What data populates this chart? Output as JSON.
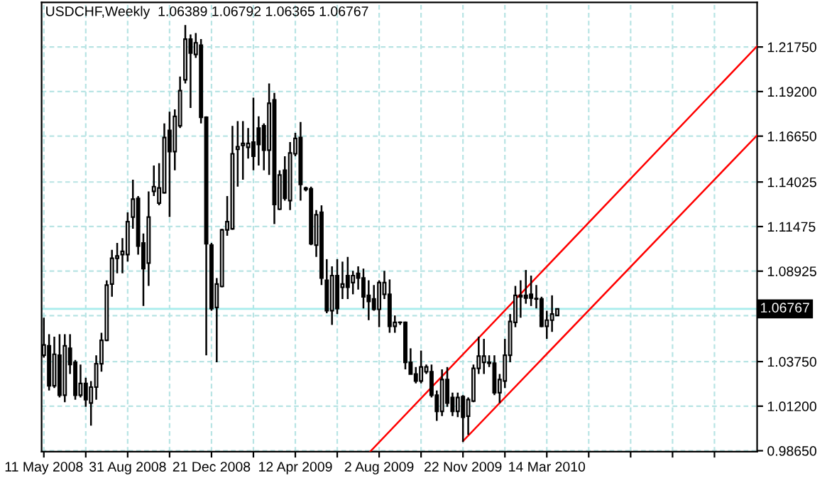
{
  "chart_data": {
    "type": "candlestick",
    "title": "USDCHF,Weekly  1.06389 1.06792 1.06365 1.06767",
    "color": "#000000",
    "x": [
      "2008-05-11",
      "2008-05-18",
      "2008-05-25",
      "2008-06-01",
      "2008-06-08",
      "2008-06-15",
      "2008-06-22",
      "2008-06-29",
      "2008-07-06",
      "2008-07-13",
      "2008-07-20",
      "2008-07-27",
      "2008-08-03",
      "2008-08-10",
      "2008-08-17",
      "2008-08-24",
      "2008-08-31",
      "2008-09-07",
      "2008-09-14",
      "2008-09-21",
      "2008-09-28",
      "2008-10-05",
      "2008-10-12",
      "2008-10-19",
      "2008-10-26",
      "2008-11-02",
      "2008-11-09",
      "2008-11-16",
      "2008-11-23",
      "2008-11-30",
      "2008-12-07",
      "2008-12-14",
      "2008-12-21",
      "2008-12-28",
      "2009-01-04",
      "2009-01-11",
      "2009-01-18",
      "2009-01-25",
      "2009-02-01",
      "2009-02-08",
      "2009-02-15",
      "2009-02-22",
      "2009-03-01",
      "2009-03-08",
      "2009-03-15",
      "2009-03-22",
      "2009-03-29",
      "2009-04-05",
      "2009-04-12",
      "2009-04-19",
      "2009-04-26",
      "2009-05-03",
      "2009-05-10",
      "2009-05-17",
      "2009-05-24",
      "2009-05-31",
      "2009-06-07",
      "2009-06-14",
      "2009-06-21",
      "2009-06-28",
      "2009-07-05",
      "2009-07-12",
      "2009-07-19",
      "2009-07-26",
      "2009-08-02",
      "2009-08-09",
      "2009-08-16",
      "2009-08-23",
      "2009-08-30",
      "2009-09-06",
      "2009-09-13",
      "2009-09-20",
      "2009-09-27",
      "2009-10-04",
      "2009-10-11",
      "2009-10-18",
      "2009-10-25",
      "2009-11-01",
      "2009-11-08",
      "2009-11-15",
      "2009-11-22",
      "2009-11-29",
      "2009-12-06",
      "2009-12-13",
      "2009-12-20",
      "2009-12-27",
      "2010-01-03",
      "2010-01-10",
      "2010-01-17",
      "2010-01-24",
      "2010-01-31",
      "2010-02-07",
      "2010-02-14",
      "2010-02-21",
      "2010-02-28",
      "2010-03-07",
      "2010-03-14",
      "2010-03-21",
      "2010-03-28"
    ],
    "ohlc": [
      [
        1.0411,
        1.0626,
        1.0398,
        1.047
      ],
      [
        1.0465,
        1.0532,
        1.021,
        1.0237
      ],
      [
        1.0237,
        1.0518,
        1.0224,
        1.0417
      ],
      [
        1.0411,
        1.0532,
        1.017,
        1.0183
      ],
      [
        1.0183,
        1.0532,
        1.0143,
        1.0465
      ],
      [
        1.0451,
        1.0532,
        1.0304,
        1.0358
      ],
      [
        1.0371,
        1.0384,
        1.0157,
        1.0183
      ],
      [
        1.0183,
        1.0358,
        1.017,
        1.025
      ],
      [
        1.025,
        1.0283,
        1.0116,
        1.0157
      ],
      [
        1.0138,
        1.0264,
        1.0009,
        1.0229
      ],
      [
        1.0229,
        1.0411,
        1.0157,
        1.0363
      ],
      [
        1.0363,
        1.054,
        1.0317,
        1.0497
      ],
      [
        1.0497,
        1.084,
        1.0492,
        1.0813
      ],
      [
        1.0819,
        1.1014,
        1.0746,
        1.0966
      ],
      [
        1.0966,
        1.1054,
        1.088,
        1.0979
      ],
      [
        1.0987,
        1.1081,
        1.088,
        1.1006
      ],
      [
        1.0987,
        1.1229,
        1.0947,
        1.1175
      ],
      [
        1.1202,
        1.1416,
        1.1135,
        1.1304
      ],
      [
        1.1309,
        1.1322,
        1.0987,
        1.1036
      ],
      [
        1.1054,
        1.1108,
        1.0693,
        1.0907
      ],
      [
        1.0939,
        1.1349,
        1.0808,
        1.1202
      ],
      [
        1.1349,
        1.1497,
        1.1322,
        1.1376
      ],
      [
        1.1282,
        1.151,
        1.1269,
        1.1368
      ],
      [
        1.1341,
        1.1738,
        1.1336,
        1.1657
      ],
      [
        1.1698,
        1.1805,
        1.1202,
        1.1577
      ],
      [
        1.1577,
        1.1818,
        1.147,
        1.1778
      ],
      [
        1.1724,
        1.2006,
        1.1711,
        1.1925
      ],
      [
        1.1987,
        1.2301,
        1.1966,
        1.222
      ],
      [
        1.222,
        1.2247,
        1.1826,
        1.214
      ],
      [
        1.2132,
        1.2255,
        1.2113,
        1.2199
      ],
      [
        1.2185,
        1.222,
        1.1738,
        1.1773
      ],
      [
        1.1773,
        1.1778,
        1.0411,
        1.1049
      ],
      [
        1.1041,
        1.1054,
        1.0666,
        1.0679
      ],
      [
        1.0685,
        1.0853,
        1.0371,
        1.0819
      ],
      [
        1.0805,
        1.1135,
        1.08,
        1.1129
      ],
      [
        1.1129,
        1.1322,
        1.1095,
        1.1175
      ],
      [
        1.1135,
        1.1724,
        1.1129,
        1.1564
      ],
      [
        1.159,
        1.1751,
        1.1376,
        1.1604
      ],
      [
        1.1612,
        1.1751,
        1.1416,
        1.1623
      ],
      [
        1.1601,
        1.1711,
        1.1537,
        1.1623
      ],
      [
        1.1631,
        1.1885,
        1.147,
        1.155
      ],
      [
        1.1711,
        1.1778,
        1.1497,
        1.1617
      ],
      [
        1.1724,
        1.1738,
        1.147,
        1.1585
      ],
      [
        1.1585,
        1.1966,
        1.1443,
        1.1853
      ],
      [
        1.1872,
        1.1912,
        1.1162,
        1.1274
      ],
      [
        1.1247,
        1.147,
        1.1242,
        1.1443
      ],
      [
        1.147,
        1.155,
        1.1296,
        1.1309
      ],
      [
        1.1296,
        1.1631,
        1.1242,
        1.1569
      ],
      [
        1.1564,
        1.1684,
        1.155,
        1.1652
      ],
      [
        1.1657,
        1.1746,
        1.1296,
        1.1389
      ],
      [
        1.1368,
        1.1376,
        1.1349,
        1.136
      ],
      [
        1.1363,
        1.1376,
        1.1041,
        1.1049
      ],
      [
        1.1041,
        1.1242,
        1.0974,
        1.1215
      ],
      [
        1.1229,
        1.1269,
        1.0813,
        1.0853
      ],
      [
        1.084,
        1.0961,
        1.0652,
        1.0666
      ],
      [
        1.0666,
        1.092,
        1.0585,
        1.0867
      ],
      [
        1.0867,
        1.0961,
        1.0647,
        1.0679
      ],
      [
        1.08,
        1.0947,
        1.0733,
        1.0819
      ],
      [
        1.0867,
        1.0974,
        1.0733,
        1.08
      ],
      [
        1.0827,
        1.0894,
        1.076,
        1.0867
      ],
      [
        1.088,
        1.092,
        1.0787,
        1.0853
      ],
      [
        1.0853,
        1.0907,
        1.0679,
        1.0746
      ],
      [
        1.0754,
        1.084,
        1.0612,
        1.0719
      ],
      [
        1.0733,
        1.0813,
        1.0666,
        1.0674
      ],
      [
        1.0674,
        1.084,
        1.0572,
        1.0827
      ],
      [
        1.076,
        1.0894,
        1.0733,
        1.0827
      ],
      [
        1.076,
        1.0845,
        1.054,
        1.0577
      ],
      [
        1.0577,
        1.0639,
        1.054,
        1.0599
      ],
      [
        1.0599,
        1.0604,
        1.0585,
        1.06
      ],
      [
        1.0599,
        1.0604,
        1.0331,
        1.0371
      ],
      [
        1.0371,
        1.0451,
        1.0304,
        1.0304
      ],
      [
        1.0304,
        1.0344,
        1.025,
        1.0264
      ],
      [
        1.0264,
        1.0438,
        1.025,
        1.0344
      ],
      [
        1.0317,
        1.0358,
        1.0304,
        1.0344
      ],
      [
        1.0317,
        1.0358,
        1.017,
        1.0183
      ],
      [
        1.0183,
        1.021,
        1.0036,
        1.009
      ],
      [
        1.009,
        1.0331,
        1.0063,
        1.0272
      ],
      [
        1.0272,
        1.0344,
        1.0116,
        1.0138
      ],
      [
        1.017,
        1.0197,
        1.0063,
        1.009
      ],
      [
        1.009,
        1.0197,
        1.0057,
        1.017
      ],
      [
        1.0175,
        1.0183,
        0.9915,
        1.0057
      ],
      [
        1.0063,
        1.017,
        0.9956,
        1.0157
      ],
      [
        1.0149,
        1.0358,
        1.0143,
        1.0336
      ],
      [
        1.0336,
        1.0518,
        1.0304,
        1.0406
      ],
      [
        1.0371,
        1.0505,
        1.0304,
        1.0406
      ],
      [
        1.0366,
        1.0411,
        1.0344,
        1.0371
      ],
      [
        1.0366,
        1.0411,
        1.0183,
        1.0197
      ],
      [
        1.0197,
        1.0304,
        1.0138,
        1.0272
      ],
      [
        1.0264,
        1.0505,
        1.0224,
        1.0411
      ],
      [
        1.0411,
        1.0647,
        1.0371,
        1.0604
      ],
      [
        1.0599,
        1.0808,
        1.0572,
        1.0754
      ],
      [
        1.0746,
        1.084,
        1.0626,
        1.0754
      ],
      [
        1.0754,
        1.0899,
        1.0706,
        1.0738
      ],
      [
        1.076,
        1.0867,
        1.0693,
        1.0738
      ],
      [
        1.0733,
        1.0813,
        1.0679,
        1.0736
      ],
      [
        1.0733,
        1.0746,
        1.0572,
        1.0577
      ],
      [
        1.0577,
        1.0666,
        1.0505,
        1.0612
      ],
      [
        1.0612,
        1.0754,
        1.0545,
        1.0647
      ],
      [
        1.06389,
        1.06792,
        1.06365,
        1.06767
      ]
    ],
    "series": [
      {
        "type": "line",
        "color": "#ff0000",
        "x": [
          "2009-07-21",
          "2010-12-20"
        ],
        "values": [
          0.986,
          1.218
        ]
      },
      {
        "type": "line",
        "color": "#ff0000",
        "x": [
          "2009-11-22",
          "2010-12-20"
        ],
        "values": [
          0.992,
          1.167
        ]
      }
    ],
    "xlim": [
      "2008-05-08",
      "2010-12-20"
    ],
    "xticks": [
      {
        "value": "2008-05-11",
        "label": "11 May 2008"
      },
      {
        "value": "2008-07-06",
        "label": null
      },
      {
        "value": "2008-08-31",
        "label": "31 Aug 2008"
      },
      {
        "value": "2008-10-26",
        "label": null
      },
      {
        "value": "2008-12-21",
        "label": "21 Dec 2008"
      },
      {
        "value": "2009-02-15",
        "label": null
      },
      {
        "value": "2009-04-12",
        "label": "12 Apr 2009"
      },
      {
        "value": "2009-06-07",
        "label": null
      },
      {
        "value": "2009-08-02",
        "label": "2 Aug 2009"
      },
      {
        "value": "2009-09-27",
        "label": null
      },
      {
        "value": "2009-11-22",
        "label": "22 Nov 2009"
      },
      {
        "value": "2010-01-17",
        "label": null
      },
      {
        "value": "2010-03-14",
        "label": "14 Mar 2010"
      },
      {
        "value": "2010-05-09",
        "label": null
      },
      {
        "value": "2010-07-04",
        "label": null
      },
      {
        "value": "2010-08-29",
        "label": null
      },
      {
        "value": "2010-10-24",
        "label": null
      }
    ],
    "ylim": [
      0.986,
      1.243
    ],
    "yticks": [
      {
        "value": 0.9865,
        "label": "0.98650"
      },
      {
        "value": 1.012,
        "label": "1.01200"
      },
      {
        "value": 1.0375,
        "label": "1.03750"
      },
      {
        "value": 1.06375,
        "label": null
      },
      {
        "value": 1.08925,
        "label": "1.08925"
      },
      {
        "value": 1.11475,
        "label": "1.11475"
      },
      {
        "value": 1.14025,
        "label": "1.14025"
      },
      {
        "value": 1.1665,
        "label": "1.16650"
      },
      {
        "value": 1.192,
        "label": "1.19200"
      },
      {
        "value": 1.2175,
        "label": "1.21750"
      }
    ],
    "grid": true,
    "ref_lines": [
      {
        "axis": "y",
        "value": 1.06767,
        "label": "1.06767",
        "color": "#a8ecec"
      }
    ]
  }
}
